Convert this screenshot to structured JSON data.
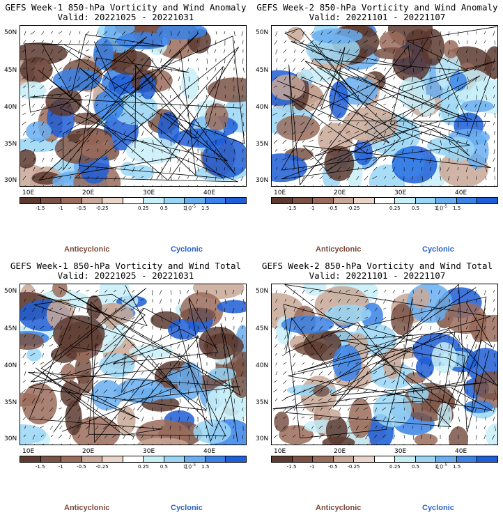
{
  "panels": [
    {
      "title": "GEFS Week-1 850-hPa Vorticity and Wind Anomaly",
      "valid": "Valid: 20221025 - 20221031"
    },
    {
      "title": "GEFS Week-2 850-hPa Vorticity and Wind Anomaly",
      "valid": "Valid: 20221101 - 20221107"
    },
    {
      "title": "GEFS Week-1 850-hPa Vorticity and Wind Total",
      "valid": "Valid: 20221025 - 20221031"
    },
    {
      "title": "GEFS Week-2 850-hPa Vorticity and Wind Total",
      "valid": "Valid: 20221101 - 20221107"
    }
  ],
  "lat_labels": [
    "50N",
    "45N",
    "40N",
    "35N",
    "30N"
  ],
  "lon_labels": [
    "10E",
    "20E",
    "30E",
    "40E"
  ],
  "colorbar": {
    "ticks": [
      "-1.5",
      "-1",
      "-0.5",
      "-0.25",
      "0.25",
      "0.5",
      "1",
      "1.5"
    ],
    "unit_note": "10",
    "colors": [
      "#5c3a30",
      "#7a5346",
      "#9a6c5c",
      "#c8a898",
      "#e8d4c8",
      "#ffffff",
      "#c8eef8",
      "#9ad6f4",
      "#6aaef0",
      "#3a82e8",
      "#1f5ed6"
    ]
  },
  "legend": {
    "anticyclonic": "Anticyclonic",
    "cyclonic": "Cyclonic"
  },
  "colors": {
    "anticyclonic": "#7a4a3a",
    "cyclonic": "#2a62c8"
  }
}
